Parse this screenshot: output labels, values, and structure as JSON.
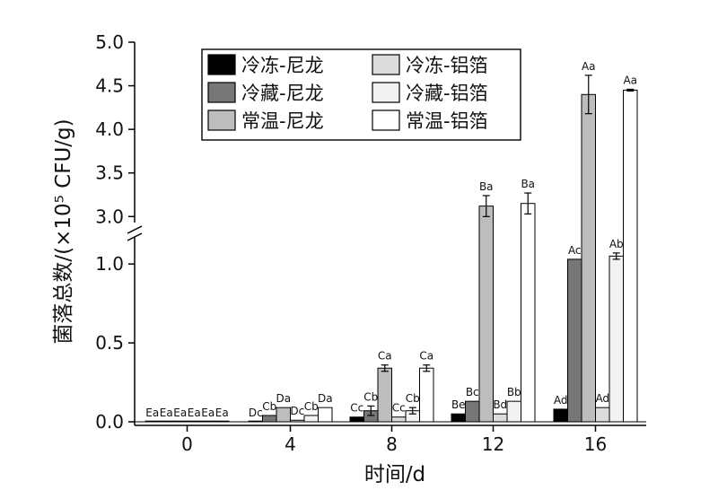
{
  "chart_data": {
    "type": "bar",
    "xlabel": "时间/d",
    "ylabel": "菌落总数/(×10⁵ CFU/g)",
    "categories": [
      "0",
      "4",
      "8",
      "12",
      "16"
    ],
    "y_axis_break": {
      "lower_range": [
        0,
        1.2
      ],
      "upper_range": [
        2.9,
        5.0
      ]
    },
    "yticks_lower": [
      "0.0",
      "0.5",
      "1.0"
    ],
    "yticks_upper": [
      "3.0",
      "3.5",
      "4.0",
      "4.5",
      "5.0"
    ],
    "series": [
      {
        "name": "冷冻-尼龙",
        "color": "#000000",
        "values": [
          0.0,
          0.0,
          0.03,
          0.05,
          0.08
        ],
        "errors": [
          0,
          0,
          0,
          0,
          0
        ],
        "labels": [
          "Ea",
          "Dc",
          "Cc",
          "Be",
          "Ad"
        ]
      },
      {
        "name": "冷藏-尼龙",
        "color": "#777777",
        "values": [
          0.0,
          0.04,
          0.07,
          0.13,
          1.03
        ],
        "errors": [
          0,
          0,
          0.03,
          0,
          0
        ],
        "labels": [
          "Ea",
          "Cb",
          "Cb",
          "Bc",
          "Ac"
        ]
      },
      {
        "name": "常温-尼龙",
        "color": "#bdbdbd",
        "values": [
          0.0,
          0.09,
          0.34,
          3.12,
          4.4
        ],
        "errors": [
          0,
          0,
          0.02,
          0.12,
          0.22
        ],
        "labels": [
          "Ea",
          "Da",
          "Ca",
          "Ba",
          "Aa"
        ]
      },
      {
        "name": "冷冻-铝箔",
        "color": "#dcdcdc",
        "values": [
          0.0,
          0.01,
          0.03,
          0.05,
          0.09
        ],
        "errors": [
          0,
          0,
          0,
          0,
          0
        ],
        "labels": [
          "Ea",
          "Dc",
          "Cc",
          "Bd",
          "Ad"
        ]
      },
      {
        "name": "冷藏-铝箔",
        "color": "#f2f2f2",
        "values": [
          0.0,
          0.04,
          0.07,
          0.13,
          1.05
        ],
        "errors": [
          0,
          0,
          0.02,
          0,
          0.02
        ],
        "labels": [
          "Ea",
          "Cb",
          "Cb",
          "Bb",
          "Ab"
        ]
      },
      {
        "name": "常温-铝箔",
        "color": "#ffffff",
        "values": [
          0.0,
          0.09,
          0.34,
          3.15,
          4.45
        ],
        "errors": [
          0,
          0,
          0.02,
          0.12,
          0.01
        ],
        "labels": [
          "Ea",
          "Da",
          "Ca",
          "Ba",
          "Aa"
        ]
      }
    ],
    "legend_position": "top-center",
    "grid": false
  }
}
